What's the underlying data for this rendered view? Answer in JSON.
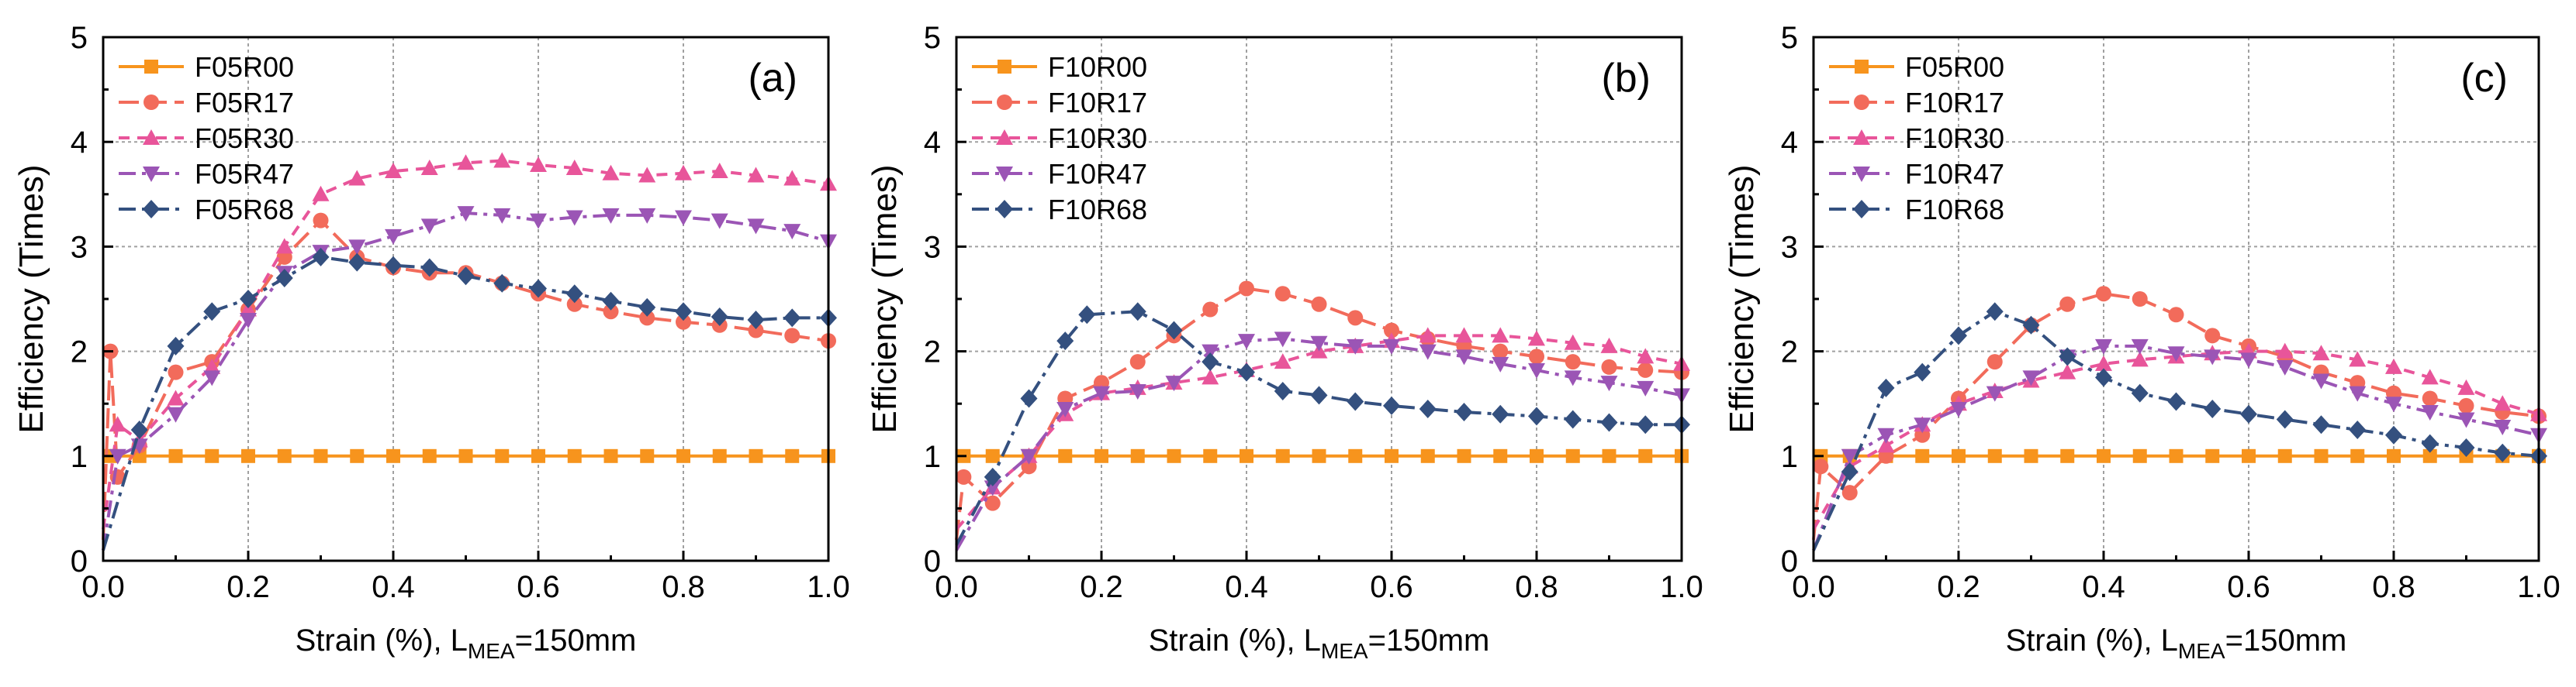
{
  "colors": {
    "R00": "#F7941D",
    "R17": "#F26B5B",
    "R30": "#E8559A",
    "R47": "#9B55B5",
    "R68": "#34507F",
    "grid": "#A0A0A0",
    "axis": "#000000"
  },
  "chart_data": [
    {
      "type": "line",
      "panel_label": "(a)",
      "xlabel": "Strain (%), L",
      "xlabel_sub": "MEA",
      "xlabel_suffix": "=150mm",
      "ylabel": "Efficiency (Times)",
      "xlim": [
        0,
        1.0
      ],
      "ylim": [
        0,
        5
      ],
      "xticks": [
        "0.0",
        "0.2",
        "0.4",
        "0.6",
        "0.8",
        "1.0"
      ],
      "yticks": [
        "0",
        "1",
        "2",
        "3",
        "4",
        "5"
      ],
      "grid": true,
      "legend_position": "top-left",
      "series": [
        {
          "name": "F05R00",
          "key": "R00",
          "marker": "square",
          "dash": "solid",
          "x": [
            0,
            0.01,
            0.05,
            0.1,
            0.15,
            0.2,
            0.25,
            0.3,
            0.35,
            0.4,
            0.45,
            0.5,
            0.55,
            0.6,
            0.65,
            0.7,
            0.75,
            0.8,
            0.85,
            0.9,
            0.95,
            1.0
          ],
          "y": [
            1,
            1,
            1,
            1,
            1,
            1,
            1,
            1,
            1,
            1,
            1,
            1,
            1,
            1,
            1,
            1,
            1,
            1,
            1,
            1,
            1,
            1
          ]
        },
        {
          "name": "F05R17",
          "key": "R17",
          "marker": "circle",
          "dash": "longdash",
          "x": [
            0,
            0.01,
            0.02,
            0.05,
            0.1,
            0.15,
            0.2,
            0.25,
            0.3,
            0.35,
            0.4,
            0.45,
            0.5,
            0.55,
            0.6,
            0.65,
            0.7,
            0.75,
            0.8,
            0.85,
            0.9,
            0.95,
            1.0
          ],
          "y": [
            0.2,
            2.0,
            0.8,
            1.1,
            1.8,
            1.9,
            2.4,
            2.9,
            3.25,
            2.9,
            2.8,
            2.75,
            2.75,
            2.65,
            2.55,
            2.45,
            2.38,
            2.32,
            2.28,
            2.25,
            2.2,
            2.15,
            2.1
          ]
        },
        {
          "name": "F05R30",
          "key": "R30",
          "marker": "triangle",
          "dash": "dash",
          "x": [
            0,
            0.02,
            0.05,
            0.1,
            0.15,
            0.2,
            0.25,
            0.3,
            0.35,
            0.4,
            0.45,
            0.5,
            0.55,
            0.6,
            0.65,
            0.7,
            0.75,
            0.8,
            0.85,
            0.9,
            0.95,
            1.0
          ],
          "y": [
            0.3,
            1.3,
            1.15,
            1.55,
            1.85,
            2.4,
            3.0,
            3.5,
            3.65,
            3.72,
            3.75,
            3.8,
            3.82,
            3.78,
            3.75,
            3.7,
            3.68,
            3.7,
            3.72,
            3.68,
            3.65,
            3.6
          ]
        },
        {
          "name": "F05R47",
          "key": "R47",
          "marker": "triangle-down",
          "dash": "dashdot",
          "x": [
            0,
            0.02,
            0.05,
            0.1,
            0.15,
            0.2,
            0.25,
            0.3,
            0.35,
            0.4,
            0.45,
            0.5,
            0.55,
            0.6,
            0.65,
            0.7,
            0.75,
            0.8,
            0.85,
            0.9,
            0.95,
            1.0
          ],
          "y": [
            0.1,
            1.0,
            1.1,
            1.4,
            1.75,
            2.3,
            2.75,
            2.95,
            3.0,
            3.1,
            3.2,
            3.32,
            3.3,
            3.25,
            3.28,
            3.3,
            3.3,
            3.28,
            3.25,
            3.2,
            3.15,
            3.05
          ]
        },
        {
          "name": "F05R68",
          "key": "R68",
          "marker": "diamond",
          "dash": "dashdot",
          "x": [
            0,
            0.05,
            0.1,
            0.15,
            0.2,
            0.25,
            0.3,
            0.35,
            0.4,
            0.45,
            0.5,
            0.55,
            0.6,
            0.65,
            0.7,
            0.75,
            0.8,
            0.85,
            0.9,
            0.95,
            1.0
          ],
          "y": [
            0.1,
            1.25,
            2.05,
            2.38,
            2.5,
            2.7,
            2.9,
            2.85,
            2.82,
            2.8,
            2.72,
            2.65,
            2.6,
            2.55,
            2.48,
            2.42,
            2.38,
            2.33,
            2.3,
            2.32,
            2.32
          ]
        }
      ]
    },
    {
      "type": "line",
      "panel_label": "(b)",
      "xlabel": "Strain (%), L",
      "xlabel_sub": "MEA",
      "xlabel_suffix": "=150mm",
      "ylabel": "Efficiency (Times)",
      "xlim": [
        0,
        1.0
      ],
      "ylim": [
        0,
        5
      ],
      "xticks": [
        "0.0",
        "0.2",
        "0.4",
        "0.6",
        "0.8",
        "1.0"
      ],
      "yticks": [
        "0",
        "1",
        "2",
        "3",
        "4",
        "5"
      ],
      "grid": true,
      "legend_position": "top-left",
      "series": [
        {
          "name": "F10R00",
          "key": "R00",
          "marker": "square",
          "dash": "solid",
          "x": [
            0,
            0.01,
            0.05,
            0.1,
            0.15,
            0.2,
            0.25,
            0.3,
            0.35,
            0.4,
            0.45,
            0.5,
            0.55,
            0.6,
            0.65,
            0.7,
            0.75,
            0.8,
            0.85,
            0.9,
            0.95,
            1.0
          ],
          "y": [
            1,
            1,
            1,
            1,
            1,
            1,
            1,
            1,
            1,
            1,
            1,
            1,
            1,
            1,
            1,
            1,
            1,
            1,
            1,
            1,
            1,
            1
          ]
        },
        {
          "name": "F10R17",
          "key": "R17",
          "marker": "circle",
          "dash": "longdash",
          "x": [
            0,
            0.01,
            0.05,
            0.1,
            0.15,
            0.2,
            0.25,
            0.3,
            0.35,
            0.4,
            0.45,
            0.5,
            0.55,
            0.6,
            0.65,
            0.7,
            0.75,
            0.8,
            0.85,
            0.9,
            0.95,
            1.0
          ],
          "y": [
            0.2,
            0.8,
            0.55,
            0.9,
            1.55,
            1.7,
            1.9,
            2.15,
            2.4,
            2.6,
            2.55,
            2.45,
            2.32,
            2.2,
            2.12,
            2.05,
            2.0,
            1.95,
            1.9,
            1.85,
            1.82,
            1.8
          ]
        },
        {
          "name": "F10R30",
          "key": "R30",
          "marker": "triangle",
          "dash": "dash",
          "x": [
            0,
            0.05,
            0.1,
            0.15,
            0.2,
            0.25,
            0.3,
            0.35,
            0.4,
            0.45,
            0.5,
            0.55,
            0.6,
            0.65,
            0.7,
            0.75,
            0.8,
            0.85,
            0.9,
            0.95,
            1.0
          ],
          "y": [
            0.3,
            0.7,
            1.0,
            1.4,
            1.6,
            1.65,
            1.7,
            1.75,
            1.82,
            1.9,
            2.0,
            2.05,
            2.1,
            2.15,
            2.15,
            2.15,
            2.12,
            2.08,
            2.05,
            1.95,
            1.88
          ]
        },
        {
          "name": "F10R47",
          "key": "R47",
          "marker": "triangle-down",
          "dash": "dashdot",
          "x": [
            0,
            0.05,
            0.1,
            0.15,
            0.2,
            0.25,
            0.3,
            0.35,
            0.4,
            0.45,
            0.5,
            0.55,
            0.6,
            0.65,
            0.7,
            0.75,
            0.8,
            0.85,
            0.9,
            0.95,
            1.0
          ],
          "y": [
            0.1,
            0.7,
            1.0,
            1.45,
            1.6,
            1.62,
            1.7,
            2.0,
            2.1,
            2.12,
            2.08,
            2.05,
            2.05,
            2.0,
            1.95,
            1.88,
            1.82,
            1.75,
            1.7,
            1.65,
            1.58
          ]
        },
        {
          "name": "F10R68",
          "key": "R68",
          "marker": "diamond",
          "dash": "dashdot",
          "x": [
            0,
            0.05,
            0.1,
            0.15,
            0.18,
            0.25,
            0.3,
            0.35,
            0.4,
            0.45,
            0.5,
            0.55,
            0.6,
            0.65,
            0.7,
            0.75,
            0.8,
            0.85,
            0.9,
            0.95,
            1.0
          ],
          "y": [
            0.15,
            0.8,
            1.55,
            2.1,
            2.35,
            2.38,
            2.2,
            1.9,
            1.8,
            1.62,
            1.58,
            1.52,
            1.48,
            1.45,
            1.42,
            1.4,
            1.38,
            1.35,
            1.32,
            1.3,
            1.3
          ]
        }
      ]
    },
    {
      "type": "line",
      "panel_label": "(c)",
      "xlabel": "Strain (%), L",
      "xlabel_sub": "MEA",
      "xlabel_suffix": "=150mm",
      "ylabel": "Efficiency (Times)",
      "xlim": [
        0,
        1.0
      ],
      "ylim": [
        0,
        5
      ],
      "xticks": [
        "0.0",
        "0.2",
        "0.4",
        "0.6",
        "0.8",
        "1.0"
      ],
      "yticks": [
        "0",
        "1",
        "2",
        "3",
        "4",
        "5"
      ],
      "grid": true,
      "legend_position": "top-left",
      "series": [
        {
          "name": "F05R00",
          "key": "R00",
          "marker": "square",
          "dash": "solid",
          "x": [
            0,
            0.01,
            0.05,
            0.1,
            0.15,
            0.2,
            0.25,
            0.3,
            0.35,
            0.4,
            0.45,
            0.5,
            0.55,
            0.6,
            0.65,
            0.7,
            0.75,
            0.8,
            0.85,
            0.9,
            0.95,
            1.0
          ],
          "y": [
            1,
            1,
            1,
            1,
            1,
            1,
            1,
            1,
            1,
            1,
            1,
            1,
            1,
            1,
            1,
            1,
            1,
            1,
            1,
            1,
            1,
            1
          ]
        },
        {
          "name": "F10R17",
          "key": "R17",
          "marker": "circle",
          "dash": "longdash",
          "x": [
            0,
            0.01,
            0.05,
            0.1,
            0.15,
            0.2,
            0.25,
            0.3,
            0.35,
            0.4,
            0.45,
            0.5,
            0.55,
            0.6,
            0.65,
            0.7,
            0.75,
            0.8,
            0.85,
            0.9,
            0.95,
            1.0
          ],
          "y": [
            0.2,
            0.9,
            0.65,
            1.0,
            1.2,
            1.55,
            1.9,
            2.25,
            2.45,
            2.55,
            2.5,
            2.35,
            2.15,
            2.05,
            1.95,
            1.8,
            1.7,
            1.6,
            1.55,
            1.48,
            1.42,
            1.38
          ]
        },
        {
          "name": "F10R30",
          "key": "R30",
          "marker": "triangle",
          "dash": "dash",
          "x": [
            0,
            0.05,
            0.1,
            0.15,
            0.2,
            0.25,
            0.3,
            0.35,
            0.4,
            0.45,
            0.5,
            0.55,
            0.6,
            0.65,
            0.7,
            0.75,
            0.8,
            0.85,
            0.9,
            0.95,
            1.0
          ],
          "y": [
            0.3,
            0.9,
            1.1,
            1.3,
            1.5,
            1.62,
            1.72,
            1.8,
            1.88,
            1.92,
            1.95,
            1.98,
            2.0,
            2.0,
            1.98,
            1.92,
            1.85,
            1.75,
            1.65,
            1.5,
            1.4
          ]
        },
        {
          "name": "F10R47",
          "key": "R47",
          "marker": "triangle-down",
          "dash": "dashdot",
          "x": [
            0,
            0.05,
            0.1,
            0.15,
            0.2,
            0.25,
            0.3,
            0.35,
            0.4,
            0.45,
            0.5,
            0.55,
            0.6,
            0.65,
            0.7,
            0.75,
            0.8,
            0.85,
            0.9,
            0.95,
            1.0
          ],
          "y": [
            0.1,
            1.0,
            1.2,
            1.3,
            1.45,
            1.6,
            1.75,
            1.95,
            2.05,
            2.05,
            1.98,
            1.95,
            1.92,
            1.85,
            1.72,
            1.6,
            1.5,
            1.42,
            1.35,
            1.28,
            1.2
          ]
        },
        {
          "name": "F10R68",
          "key": "R68",
          "marker": "diamond",
          "dash": "dashdot",
          "x": [
            0,
            0.05,
            0.1,
            0.15,
            0.2,
            0.25,
            0.3,
            0.35,
            0.4,
            0.45,
            0.5,
            0.55,
            0.6,
            0.65,
            0.7,
            0.75,
            0.8,
            0.85,
            0.9,
            0.95,
            1.0
          ],
          "y": [
            0.1,
            0.85,
            1.65,
            1.8,
            2.15,
            2.38,
            2.25,
            1.95,
            1.75,
            1.6,
            1.52,
            1.45,
            1.4,
            1.35,
            1.3,
            1.25,
            1.2,
            1.12,
            1.08,
            1.03,
            1.0
          ]
        }
      ]
    }
  ]
}
